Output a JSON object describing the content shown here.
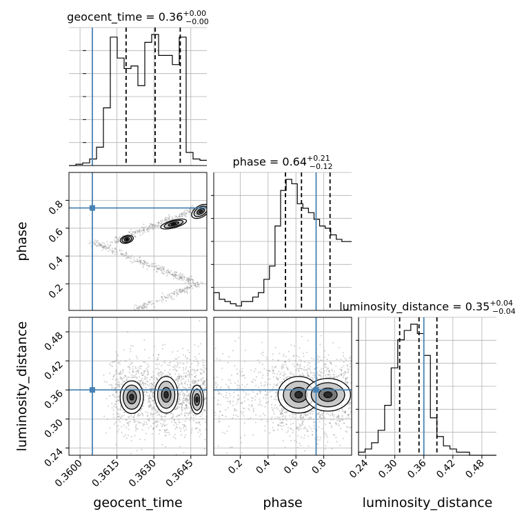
{
  "chart_data": {
    "type": "corner",
    "parameters": [
      "geocent_time",
      "phase",
      "luminosity_distance"
    ],
    "axis_labels": {
      "x": [
        "geocent_time",
        "phase",
        "luminosity_distance"
      ],
      "y": [
        "phase",
        "luminosity_distance"
      ]
    },
    "titles": [
      {
        "name": "geocent_time",
        "median": "0.36",
        "plus": "+0.00",
        "minus": "−0.00"
      },
      {
        "name": "phase",
        "median": "0.64",
        "plus": "+0.21",
        "minus": "−0.12"
      },
      {
        "name": "luminosity_distance",
        "median": "0.35",
        "plus": "+0.04",
        "minus": "−0.04"
      }
    ],
    "ranges": {
      "geocent_time": [
        0.35955,
        0.36515
      ],
      "phase": [
        0.01,
        1.0
      ],
      "luminosity_distance": [
        0.225,
        0.51
      ]
    },
    "ticks": {
      "geocent_time": {
        "values": [
          0.36,
          0.3615,
          0.363,
          0.3645
        ],
        "labels": [
          "0.3600",
          "0.3615",
          "0.3630",
          "0.3645"
        ]
      },
      "phase": {
        "values": [
          0.2,
          0.4,
          0.6,
          0.8
        ],
        "labels": [
          "0.2",
          "0.4",
          "0.6",
          "0.8"
        ]
      },
      "luminosity_distance": {
        "values": [
          0.24,
          0.3,
          0.36,
          0.42,
          0.48
        ],
        "labels": [
          "0.24",
          "0.30",
          "0.36",
          "0.42",
          "0.48"
        ]
      }
    },
    "truths": {
      "geocent_time": 0.3605,
      "phase": 0.745,
      "luminosity_distance": 0.36
    },
    "quantiles": {
      "geocent_time": [
        0.36187,
        0.36305,
        0.36407
      ],
      "phase": [
        0.525,
        0.64,
        0.845
      ],
      "luminosity_distance": [
        0.31,
        0.35,
        0.387
      ]
    },
    "histograms": {
      "geocent_time": {
        "edges": [
          0.35955,
          0.35983,
          0.36011,
          0.36039,
          0.36067,
          0.36095,
          0.36123,
          0.36151,
          0.36179,
          0.36207,
          0.36235,
          0.36263,
          0.36291,
          0.36319,
          0.36347,
          0.36375,
          0.36403,
          0.36431,
          0.36459,
          0.36487,
          0.36515
        ],
        "counts": [
          0,
          1,
          2,
          5,
          14,
          44,
          98,
          82,
          74,
          76,
          61,
          94,
          100,
          84,
          84,
          77,
          98,
          10,
          5,
          4
        ]
      },
      "phase": {
        "edges": [
          0.01,
          0.05,
          0.09,
          0.13,
          0.17,
          0.21,
          0.25,
          0.29,
          0.33,
          0.37,
          0.41,
          0.45,
          0.49,
          0.53,
          0.57,
          0.61,
          0.65,
          0.69,
          0.73,
          0.77,
          0.81,
          0.85,
          0.89,
          0.93,
          0.97,
          1.0
        ],
        "counts": [
          8,
          5,
          4,
          3,
          2,
          4,
          4,
          6,
          8,
          14,
          20,
          38,
          54,
          59,
          57,
          48,
          46,
          44,
          41,
          38,
          37,
          34,
          32,
          31,
          31
        ]
      },
      "luminosity_distance": {
        "edges": [
          0.225,
          0.2385,
          0.252,
          0.2655,
          0.279,
          0.2925,
          0.306,
          0.3195,
          0.333,
          0.3465,
          0.36,
          0.3735,
          0.387,
          0.4005,
          0.414,
          0.4275,
          0.441,
          0.4545,
          0.468,
          0.4815,
          0.495,
          0.51
        ],
        "counts": [
          1,
          2,
          4,
          8,
          16,
          28,
          37,
          40,
          42,
          39,
          32,
          12,
          6,
          3,
          2,
          1,
          1,
          0,
          0,
          0,
          0
        ]
      }
    },
    "grid": true
  }
}
